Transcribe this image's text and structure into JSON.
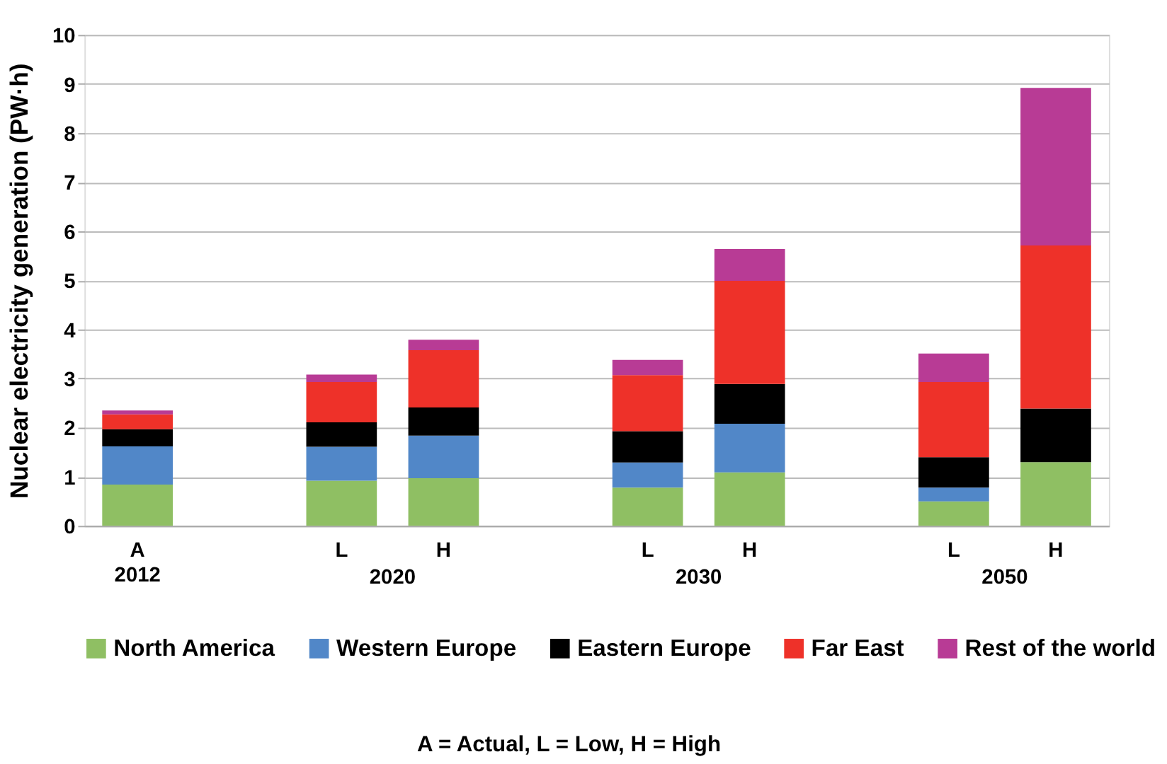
{
  "chart_data": {
    "type": "bar",
    "stacked": true,
    "ylabel": "Nuclear  electricity generation (PW·h)",
    "categories": [
      "A",
      null,
      "L",
      "H",
      null,
      "L",
      "H",
      null,
      "L",
      "H"
    ],
    "series": [
      {
        "name": "North America",
        "color": "#8fbf63",
        "values": [
          0.84,
          null,
          0.92,
          0.97,
          null,
          0.78,
          1.09,
          null,
          0.5,
          1.3
        ]
      },
      {
        "name": "Western Europe",
        "color": "#5187c8",
        "values": [
          0.78,
          null,
          0.69,
          0.87,
          null,
          0.51,
          0.99,
          null,
          0.28,
          0
        ]
      },
      {
        "name": "Eastern Europe",
        "color": "#000000",
        "values": [
          0.35,
          null,
          0.5,
          0.57,
          null,
          0.64,
          0.81,
          null,
          0.62,
          1.09
        ]
      },
      {
        "name": "Far East",
        "color": "#ee3129",
        "values": [
          0.3,
          null,
          0.82,
          1.17,
          null,
          1.14,
          2.1,
          null,
          1.53,
          3.32
        ]
      },
      {
        "name": "Rest of the world",
        "color": "#b83b95",
        "values": [
          0.08,
          null,
          0.15,
          0.21,
          null,
          0.31,
          0.65,
          null,
          0.58,
          3.21
        ]
      }
    ],
    "ylim": [
      0,
      10
    ],
    "yticks": [
      0,
      1,
      2,
      3,
      4,
      5,
      6,
      7,
      8,
      9,
      10
    ],
    "grid": "y",
    "legend": "bottom",
    "annotations": [
      "2012",
      "2020",
      "2030",
      "2050",
      "A = Actual, L = Low, H = High"
    ]
  }
}
